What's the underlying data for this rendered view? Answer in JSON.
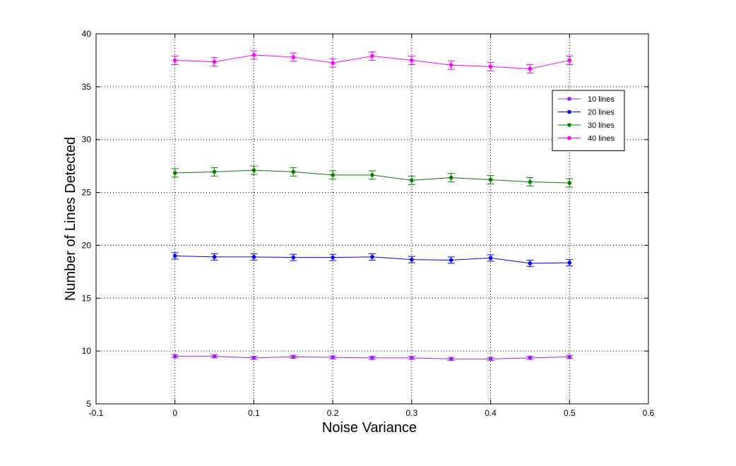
{
  "chart_data": {
    "type": "line",
    "title": "",
    "xlabel": "Noise Variance",
    "ylabel": "Number of Lines Detected",
    "xlim": [
      -0.1,
      0.6
    ],
    "ylim": [
      5,
      40
    ],
    "xticks": [
      "-0.1",
      "0",
      "0.1",
      "0.2",
      "0.3",
      "0.4",
      "0.5",
      "0.6"
    ],
    "yticks": [
      "5",
      "10",
      "15",
      "20",
      "25",
      "30",
      "35",
      "40"
    ],
    "grid": true,
    "legend_position": "top-right",
    "x": [
      0,
      0.05,
      0.1,
      0.15,
      0.2,
      0.25,
      0.3,
      0.35,
      0.4,
      0.45,
      0.5
    ],
    "series": [
      {
        "name": "10 lines",
        "color": "#9B20F0",
        "values": [
          9.5,
          9.5,
          9.35,
          9.45,
          9.4,
          9.35,
          9.35,
          9.25,
          9.25,
          9.35,
          9.45
        ],
        "errors": [
          0.15,
          0.15,
          0.15,
          0.15,
          0.15,
          0.15,
          0.15,
          0.15,
          0.15,
          0.15,
          0.15
        ]
      },
      {
        "name": "20 lines",
        "color": "#0000FF",
        "values": [
          19.0,
          18.9,
          18.9,
          18.85,
          18.85,
          18.9,
          18.65,
          18.6,
          18.8,
          18.3,
          18.35
        ],
        "errors": [
          0.3,
          0.3,
          0.3,
          0.3,
          0.3,
          0.3,
          0.3,
          0.3,
          0.3,
          0.3,
          0.3
        ]
      },
      {
        "name": "30 lines",
        "color": "#007F00",
        "values": [
          26.85,
          26.95,
          27.1,
          26.95,
          26.65,
          26.65,
          26.15,
          26.4,
          26.2,
          26.0,
          25.9
        ],
        "errors": [
          0.4,
          0.4,
          0.4,
          0.4,
          0.4,
          0.4,
          0.4,
          0.4,
          0.4,
          0.4,
          0.4
        ]
      },
      {
        "name": "40 lines",
        "color": "#FF00FF",
        "values": [
          37.5,
          37.35,
          38.0,
          37.8,
          37.25,
          37.9,
          37.5,
          37.05,
          36.9,
          36.7,
          37.5
        ],
        "errors": [
          0.4,
          0.4,
          0.4,
          0.4,
          0.4,
          0.4,
          0.4,
          0.4,
          0.4,
          0.4,
          0.4
        ]
      }
    ]
  }
}
